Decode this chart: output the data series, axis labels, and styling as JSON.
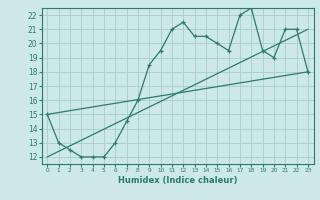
{
  "xlabel": "Humidex (Indice chaleur)",
  "ylabel": "",
  "background_color": "#cce8e8",
  "grid_color": "#aacccc",
  "line_color": "#2d7a6e",
  "xlim": [
    -0.5,
    23.5
  ],
  "ylim": [
    11.5,
    22.5
  ],
  "xticks": [
    0,
    1,
    2,
    3,
    4,
    5,
    6,
    7,
    8,
    9,
    10,
    11,
    12,
    13,
    14,
    15,
    16,
    17,
    18,
    19,
    20,
    21,
    22,
    23
  ],
  "yticks": [
    12,
    13,
    14,
    15,
    16,
    17,
    18,
    19,
    20,
    21,
    22
  ],
  "main_x": [
    0,
    1,
    2,
    3,
    4,
    5,
    6,
    7,
    8,
    9,
    10,
    11,
    12,
    13,
    14,
    15,
    16,
    17,
    18,
    19,
    20,
    21,
    22,
    23
  ],
  "main_y": [
    15,
    13,
    12.5,
    12,
    12,
    12,
    13,
    14.5,
    16,
    18.5,
    19.5,
    21,
    21.5,
    20.5,
    20.5,
    20,
    19.5,
    22,
    22.5,
    19.5,
    19,
    21,
    21,
    18
  ],
  "trend1_x": [
    0,
    23
  ],
  "trend1_y": [
    15,
    18
  ],
  "trend2_x": [
    0,
    23
  ],
  "trend2_y": [
    12,
    21
  ]
}
